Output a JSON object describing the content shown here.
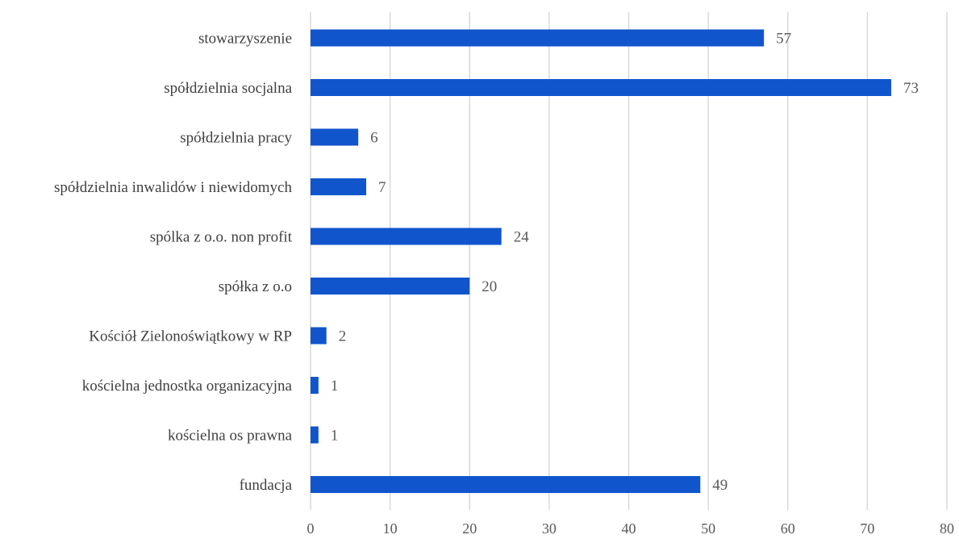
{
  "chart_data": {
    "type": "bar",
    "orientation": "horizontal",
    "categories": [
      "stowarzyszenie",
      "spółdzielnia socjalna",
      "spółdzielnia pracy",
      "spółdzielnia inwalidów i niewidomych",
      "spólka z o.o. non profit",
      "spółka z o.o",
      "Kościół Zielonoświątkowy w RP",
      "kościelna jednostka organizacyjna",
      "kościelna os prawna",
      "fundacja"
    ],
    "values": [
      57,
      73,
      6,
      7,
      24,
      20,
      2,
      1,
      1,
      49
    ],
    "value_labels": [
      "57",
      "73",
      "6",
      "7",
      "24",
      "20",
      "2",
      "1",
      "1",
      "49"
    ],
    "x_ticks": [
      "0",
      "10",
      "20",
      "30",
      "40",
      "50",
      "60",
      "70",
      "80"
    ],
    "xlim": [
      0,
      80
    ],
    "bar_color": "#1155cc",
    "grid": "vertical",
    "legend": "none",
    "title": "",
    "xlabel": "",
    "ylabel": ""
  }
}
